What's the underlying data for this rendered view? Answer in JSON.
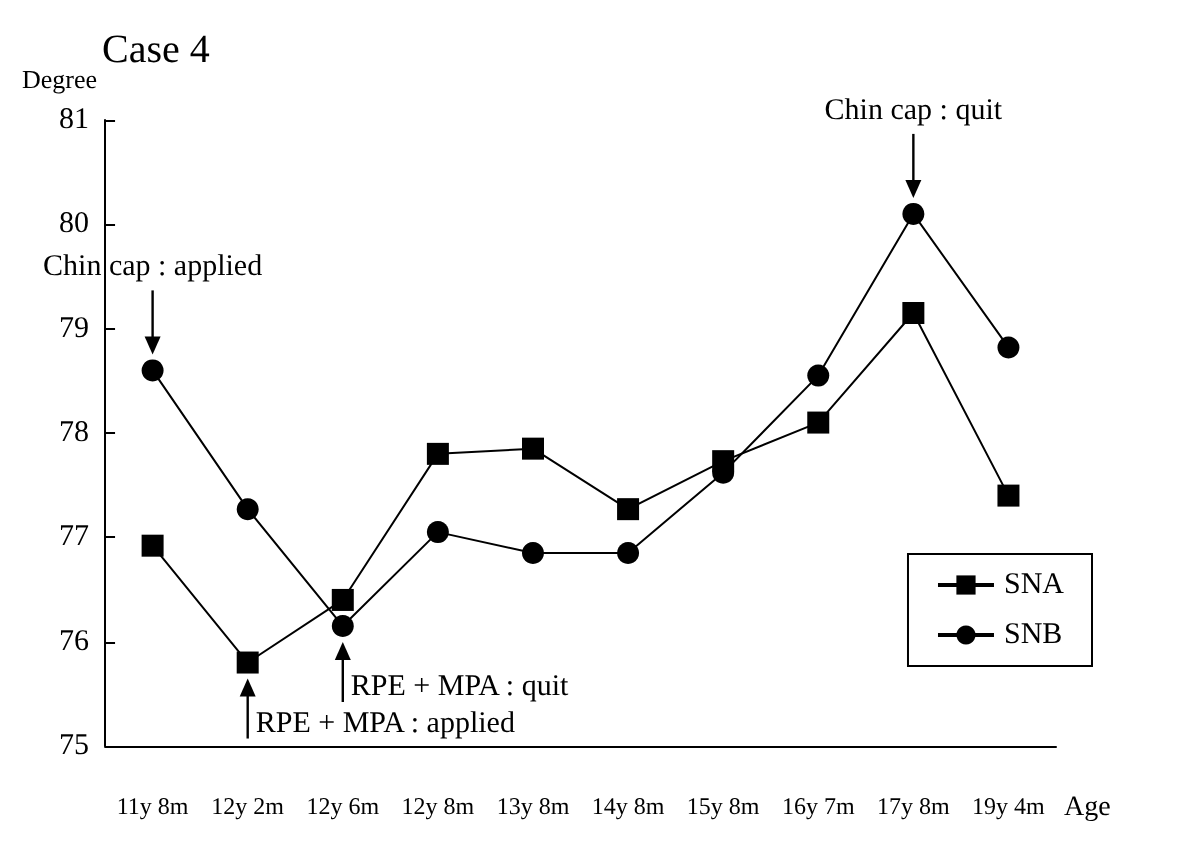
{
  "chart_data": {
    "type": "line",
    "title": "Case 4",
    "ylabel": "Degree",
    "xlabel": "Age",
    "categories": [
      "11y 8m",
      "12y 2m",
      "12y 6m",
      "12y 8m",
      "13y 8m",
      "14y 8m",
      "15y 8m",
      "16y 7m",
      "17y 8m",
      "19y 4m"
    ],
    "series": [
      {
        "name": "SNA",
        "color": "#000000",
        "marker": "square",
        "values": [
          76.92,
          75.8,
          76.4,
          77.8,
          77.85,
          77.27,
          77.73,
          78.1,
          79.15,
          77.4
        ]
      },
      {
        "name": "SNB",
        "color": "#000000",
        "marker": "circle",
        "values": [
          78.6,
          77.27,
          76.15,
          77.05,
          76.85,
          76.85,
          77.62,
          78.55,
          80.1,
          78.82
        ]
      }
    ],
    "ylim": [
      75,
      81
    ],
    "yticks": [
      75,
      76,
      77,
      78,
      79,
      80,
      81
    ],
    "grid": false,
    "legend": "bottom right",
    "line_style": "solid",
    "annotations": [
      {
        "text": "Chin cap : applied",
        "x": "11y 8m",
        "y": 78.6
      },
      {
        "text": "RPE + MPA : applied",
        "x": "12y 2m",
        "y": 75.8
      },
      {
        "text": "RPE + MPA : quit",
        "x": "12y 6m",
        "y": 76.15
      },
      {
        "text": "Chin cap : quit",
        "x": "17y 8m",
        "y": 80.1
      }
    ]
  }
}
